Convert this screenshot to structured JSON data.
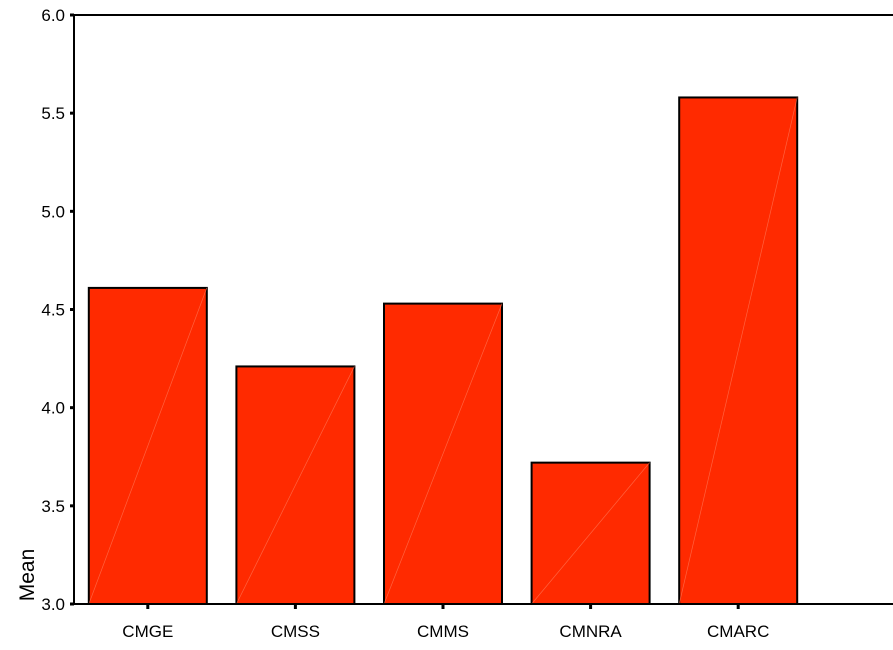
{
  "chart_data": {
    "type": "bar",
    "title": "",
    "xlabel": "",
    "ylabel": "Mean",
    "categories": [
      "CMGE",
      "CMSS",
      "CMMS",
      "CMNRA",
      "CMARC"
    ],
    "values": [
      4.61,
      4.21,
      4.53,
      3.72,
      5.58
    ],
    "ylim": [
      3.0,
      6.0
    ],
    "yticks": [
      "3.0",
      "3.5",
      "4.0",
      "4.5",
      "5.0",
      "5.5",
      "6.0"
    ],
    "grid": false,
    "legend": "none",
    "colors": {
      "bar_fill": "#ff2a00",
      "bar_edge": "#000000",
      "axis": "#000000"
    }
  }
}
